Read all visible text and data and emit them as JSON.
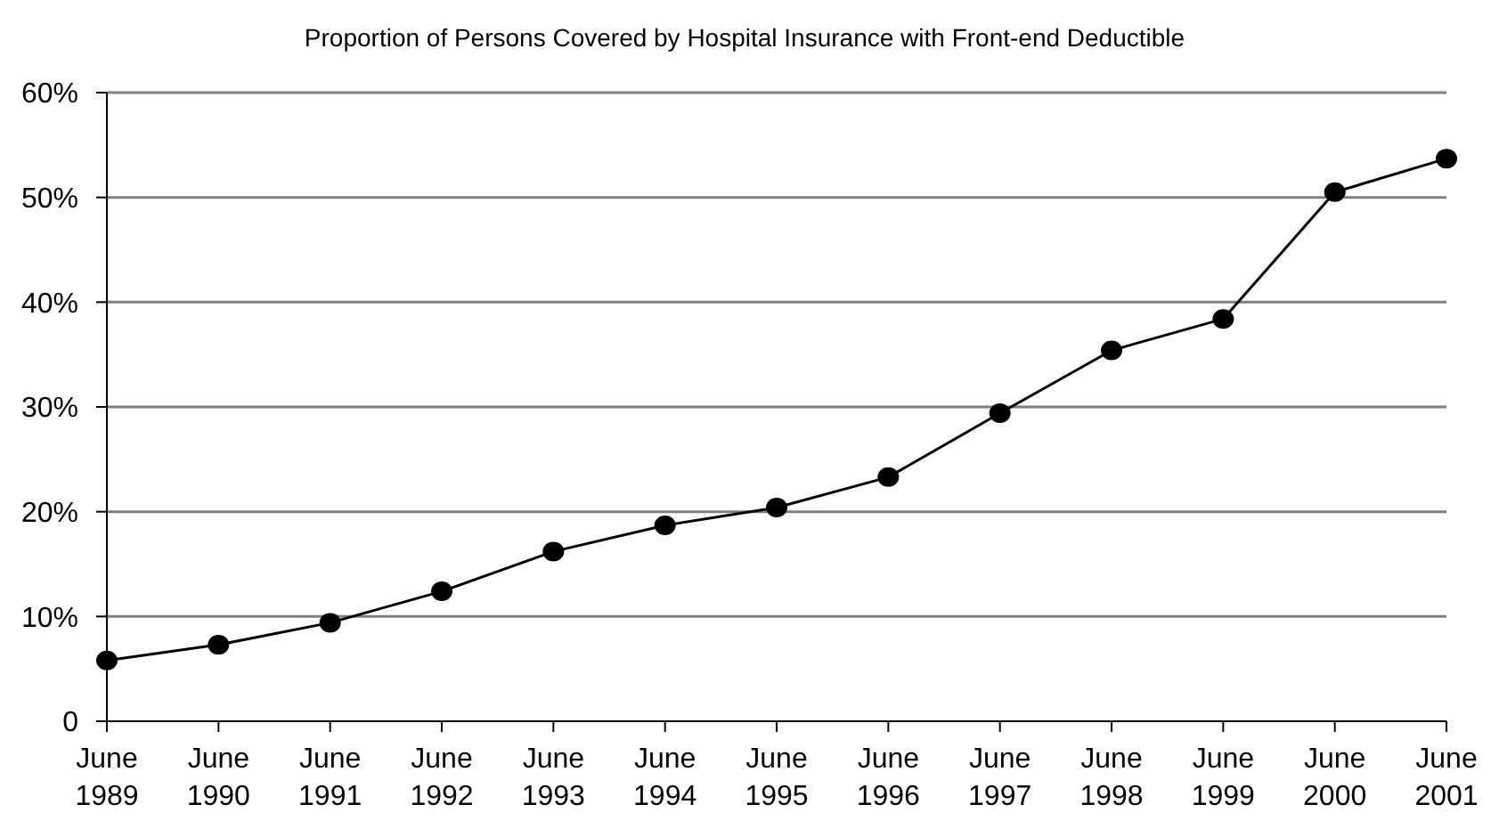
{
  "chart_data": {
    "type": "line",
    "title": "Proportion of Persons Covered by Hospital Insurance with Front-end Deductible",
    "categories": [
      "June 1989",
      "June 1990",
      "June 1991",
      "June 1992",
      "June 1993",
      "June 1994",
      "June 1995",
      "June 1996",
      "June 1997",
      "June 1998",
      "June 1999",
      "June 2000",
      "June 2001"
    ],
    "series": [
      {
        "color": "#000000",
        "values": [
          5.8,
          7.3,
          9.4,
          12.4,
          16.2,
          18.7,
          20.4,
          23.3,
          29.4,
          35.4,
          38.4,
          50.5,
          53.7
        ]
      }
    ],
    "ylim": [
      0,
      60
    ],
    "yticks": [
      {
        "value": 0,
        "label": "0"
      },
      {
        "value": 10,
        "label": "10%"
      },
      {
        "value": 20,
        "label": "20%"
      },
      {
        "value": 30,
        "label": "30%"
      },
      {
        "value": 40,
        "label": "40%"
      },
      {
        "value": 50,
        "label": "50%"
      },
      {
        "value": 60,
        "label": "60%"
      }
    ],
    "grid": "y",
    "marker": "circle",
    "line_style": "solid"
  }
}
